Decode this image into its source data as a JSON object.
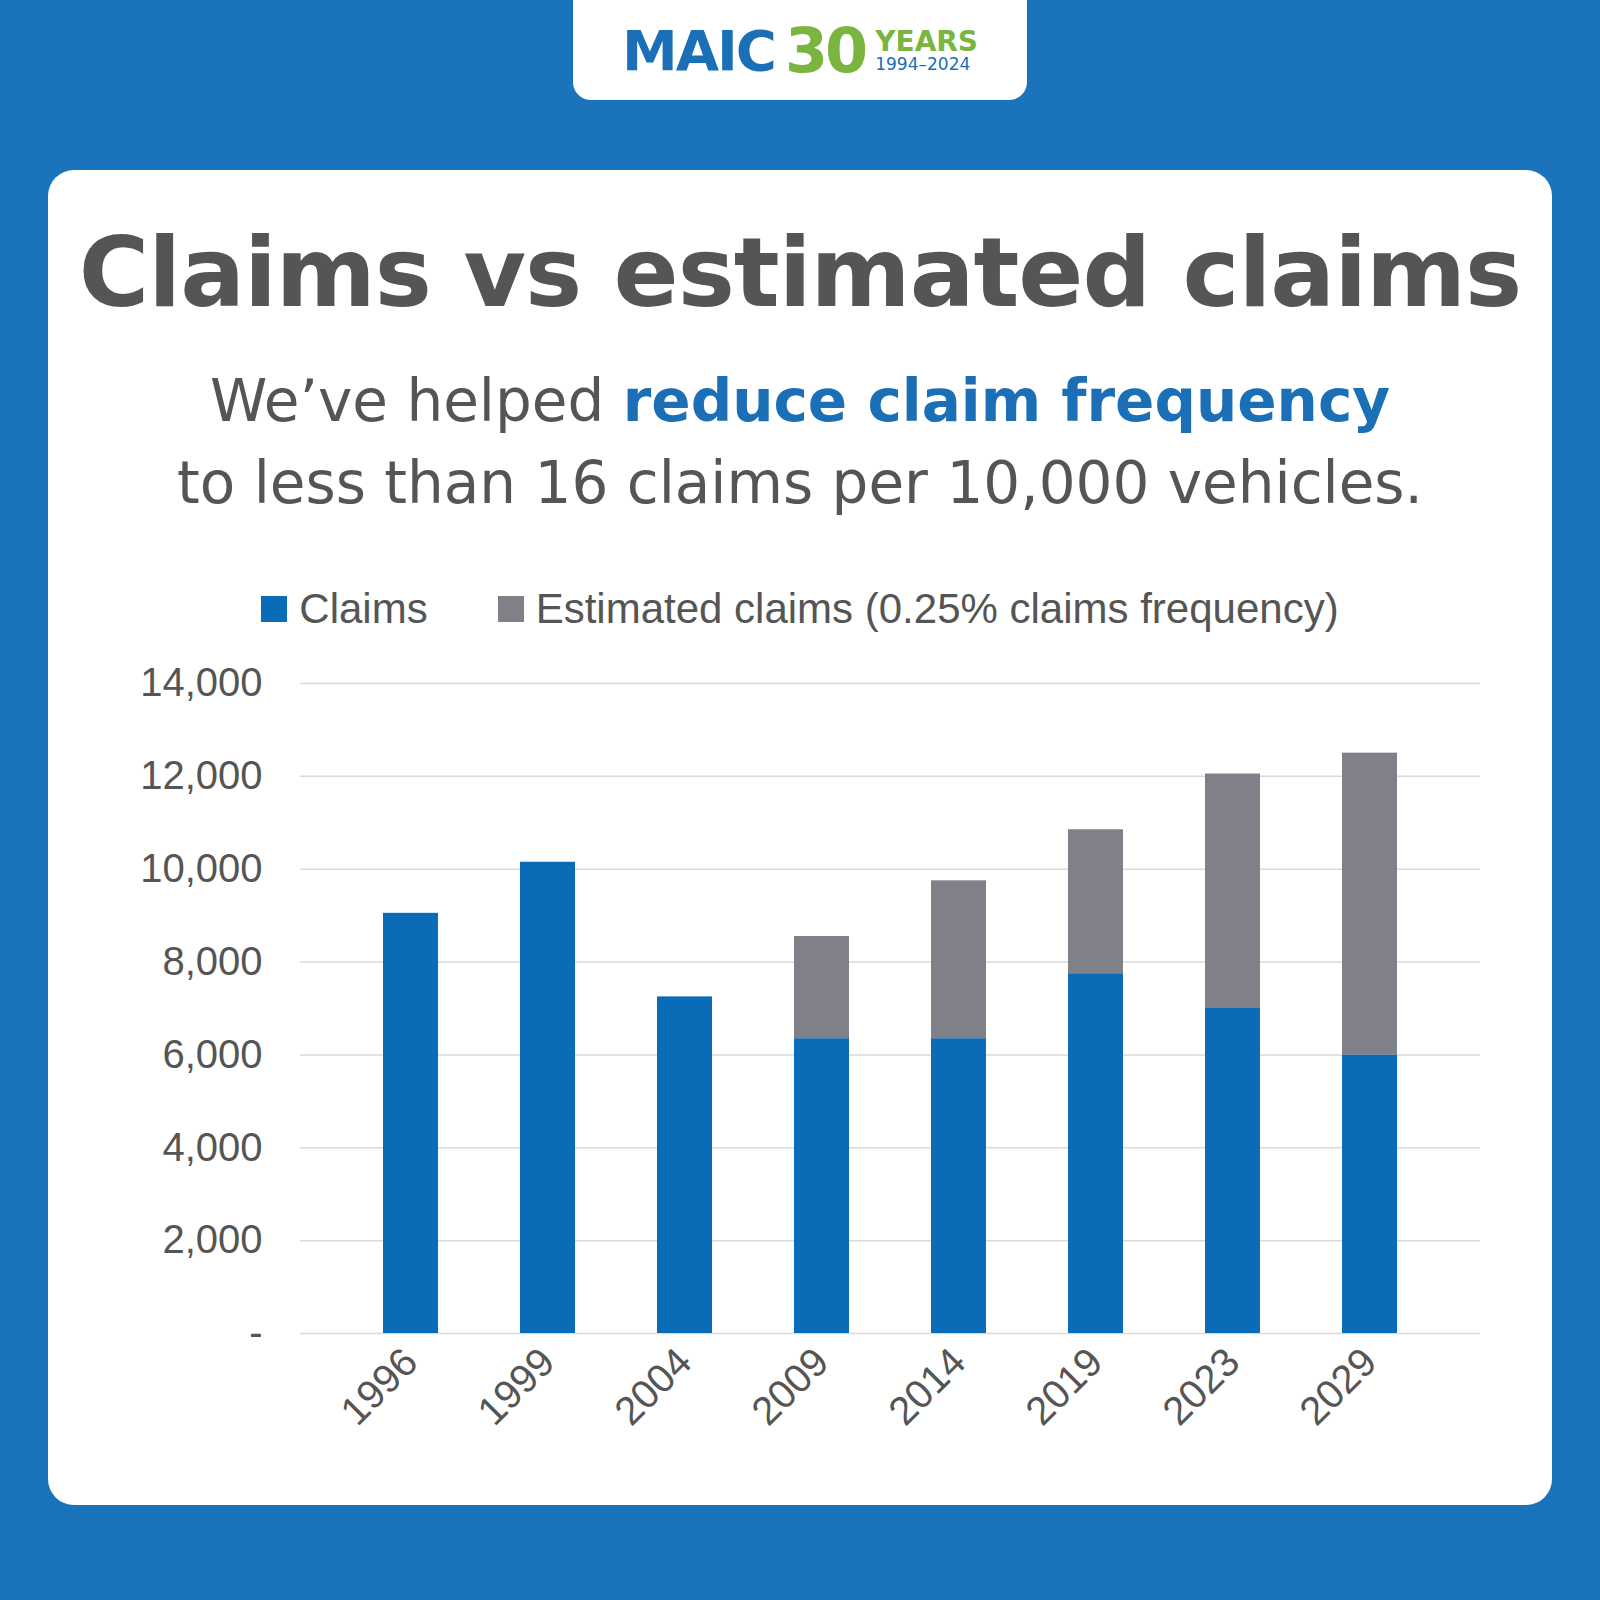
{
  "header": {
    "name": "MAIC",
    "number": "30",
    "word": "YEARS",
    "years": "1994–2024"
  },
  "chart_data": {
    "type": "bar",
    "title": "Claims vs estimated claims",
    "subtitle": [
      "We’ve helped ",
      "reduce claim frequency",
      "to less than 16 claims per 10,000 vehicles."
    ],
    "categories": [
      "1996",
      "1999",
      "2004",
      "2009",
      "2014",
      "2019",
      "2023",
      "2029"
    ],
    "series": [
      {
        "name": "Claims",
        "color": "#0a6bb7",
        "values": [
          9050,
          10150,
          7250,
          6350,
          6350,
          7750,
          7000,
          6000
        ]
      },
      {
        "name": "Estimated claims (0.25% claims frequency)",
        "color": "#808089",
        "values": [
          0,
          0,
          0,
          2200,
          3400,
          3100,
          5050,
          6500
        ]
      }
    ],
    "stacked": true,
    "ylim": [
      0,
      14000
    ],
    "yticks": [
      {
        "value": 0,
        "label": "-"
      },
      {
        "value": 2000,
        "label": "2,000"
      },
      {
        "value": 4000,
        "label": "4,000"
      },
      {
        "value": 6000,
        "label": "6,000"
      },
      {
        "value": 8000,
        "label": "8,000"
      },
      {
        "value": 10000,
        "label": "10,000"
      },
      {
        "value": 12000,
        "label": "12,000"
      },
      {
        "value": 14000,
        "label": "14,000"
      }
    ],
    "grid": true,
    "legend": "top"
  }
}
